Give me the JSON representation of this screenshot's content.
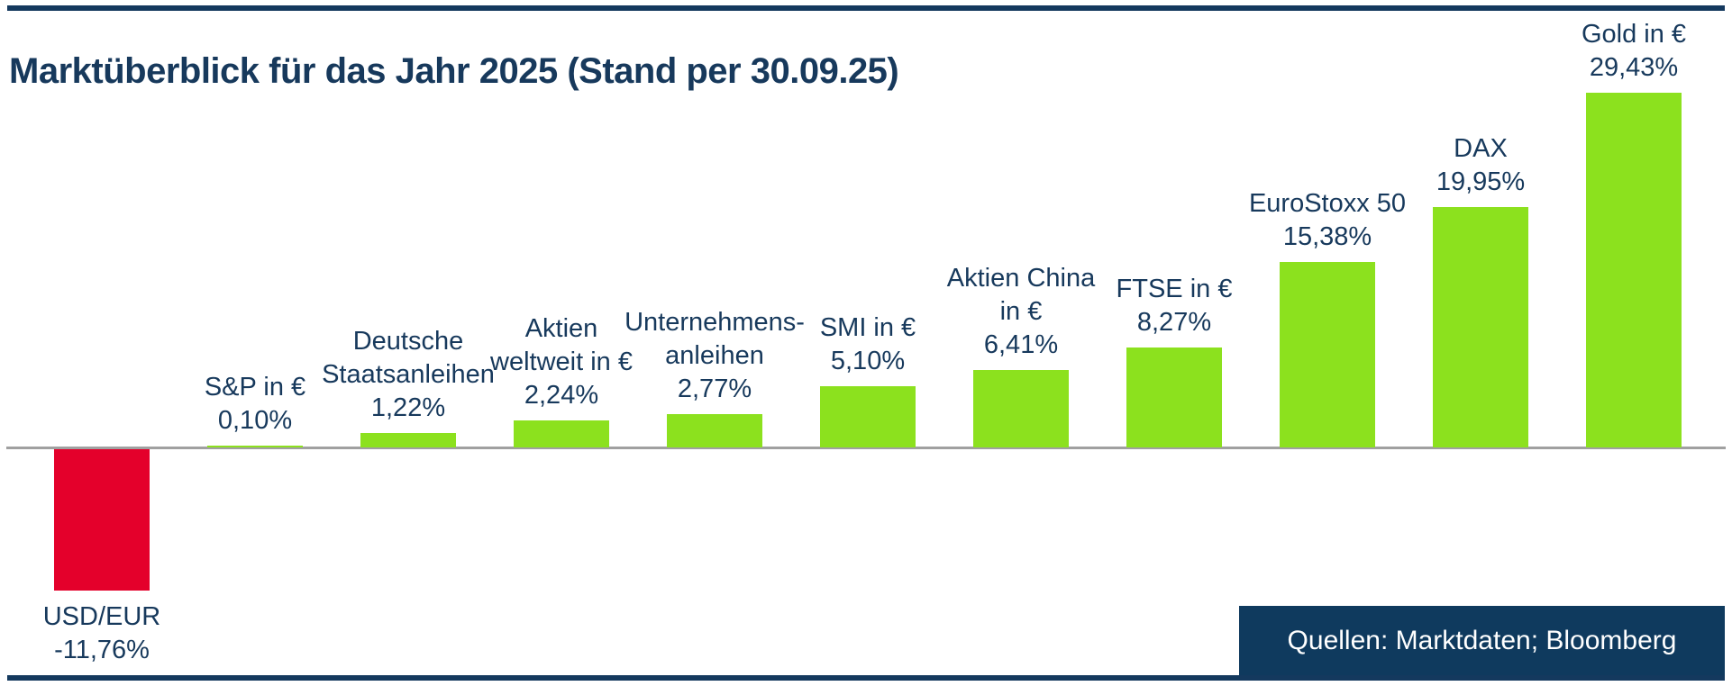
{
  "header": {
    "title": "Marktüberblick für das Jahr 2025 (Stand per 30.09.25)"
  },
  "source_box": {
    "text": "Quellen: Marktdaten; Bloomberg"
  },
  "colors": {
    "navy": "#14395E",
    "title_text": "#17395C",
    "positive_bar": "#8CE11E",
    "negative_bar": "#E4002B",
    "baseline": "#A0A0A0",
    "source_box_bg": "#0F3A5E",
    "source_box_text": "#FFFFFF"
  },
  "chart_data": {
    "type": "bar",
    "title": "Marktüberblick für das Jahr 2025 (Stand per 30.09.25)",
    "xlabel": "",
    "ylabel": "",
    "unit": "%",
    "baseline": 0,
    "ylim": [
      -13,
      31
    ],
    "grid": false,
    "legend": null,
    "categories": [
      "USD/EUR",
      "S&P in €",
      "Deutsche Staatsanleihen",
      "Aktien weltweit in €",
      "Unternehmens-anleihen",
      "SMI in €",
      "Aktien China in €",
      "FTSE in €",
      "EuroStoxx 50",
      "DAX",
      "Gold in €"
    ],
    "values": [
      -11.76,
      0.1,
      1.22,
      2.24,
      2.77,
      5.1,
      6.41,
      8.27,
      15.38,
      19.95,
      29.43
    ],
    "bars": [
      {
        "id": "usd-eur",
        "label_lines": [
          "USD/EUR"
        ],
        "value": -11.76,
        "value_label": "-11,76%"
      },
      {
        "id": "sp-in-eur",
        "label_lines": [
          "S&P in €"
        ],
        "value": 0.1,
        "value_label": "0,10%"
      },
      {
        "id": "deutsche-staatsanleihen",
        "label_lines": [
          "Deutsche",
          "Staatsanleihen"
        ],
        "value": 1.22,
        "value_label": "1,22%"
      },
      {
        "id": "aktien-weltweit",
        "label_lines": [
          "Aktien",
          "weltweit in €"
        ],
        "value": 2.24,
        "value_label": "2,24%"
      },
      {
        "id": "unternehmensanleihen",
        "label_lines": [
          "Unternehmens-",
          "anleihen"
        ],
        "value": 2.77,
        "value_label": "2,77%"
      },
      {
        "id": "smi-in-eur",
        "label_lines": [
          "SMI in €"
        ],
        "value": 5.1,
        "value_label": "5,10%"
      },
      {
        "id": "aktien-china",
        "label_lines": [
          "Aktien China",
          "in €"
        ],
        "value": 6.41,
        "value_label": "6,41%"
      },
      {
        "id": "ftse-in-eur",
        "label_lines": [
          "FTSE in €"
        ],
        "value": 8.27,
        "value_label": "8,27%"
      },
      {
        "id": "eurostoxx-50",
        "label_lines": [
          "EuroStoxx 50"
        ],
        "value": 15.38,
        "value_label": "15,38%"
      },
      {
        "id": "dax",
        "label_lines": [
          "DAX"
        ],
        "value": 19.95,
        "value_label": "19,95%"
      },
      {
        "id": "gold-in-eur",
        "label_lines": [
          "Gold in €"
        ],
        "value": 29.43,
        "value_label": "29,43%"
      }
    ]
  }
}
